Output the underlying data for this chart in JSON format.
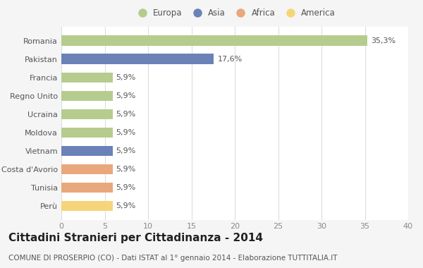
{
  "categories": [
    "Romania",
    "Pakistan",
    "Francia",
    "Regno Unito",
    "Ucraina",
    "Moldova",
    "Vietnam",
    "Costa d'Avorio",
    "Tunisia",
    "Perù"
  ],
  "values": [
    35.3,
    17.6,
    5.9,
    5.9,
    5.9,
    5.9,
    5.9,
    5.9,
    5.9,
    5.9
  ],
  "labels": [
    "35,3%",
    "17,6%",
    "5,9%",
    "5,9%",
    "5,9%",
    "5,9%",
    "5,9%",
    "5,9%",
    "5,9%",
    "5,9%"
  ],
  "colors": [
    "#b5cc8e",
    "#6b82b8",
    "#b5cc8e",
    "#b5cc8e",
    "#b5cc8e",
    "#b5cc8e",
    "#6b82b8",
    "#e8a87c",
    "#e8a87c",
    "#f5d57a"
  ],
  "legend_labels": [
    "Europa",
    "Asia",
    "Africa",
    "America"
  ],
  "legend_colors": [
    "#b5cc8e",
    "#6b82b8",
    "#e8a87c",
    "#f5d57a"
  ],
  "xlim": [
    0,
    40
  ],
  "xticks": [
    0,
    5,
    10,
    15,
    20,
    25,
    30,
    35,
    40
  ],
  "title": "Cittadini Stranieri per Cittadinanza - 2014",
  "subtitle": "COMUNE DI PROSERPIO (CO) - Dati ISTAT al 1° gennaio 2014 - Elaborazione TUTTITALIA.IT",
  "background_color": "#f5f5f5",
  "plot_bg": "#ffffff",
  "grid_color": "#dddddd",
  "title_fontsize": 11,
  "subtitle_fontsize": 7.5,
  "label_fontsize": 8,
  "tick_fontsize": 8,
  "legend_fontsize": 8.5,
  "ytick_fontsize": 8
}
